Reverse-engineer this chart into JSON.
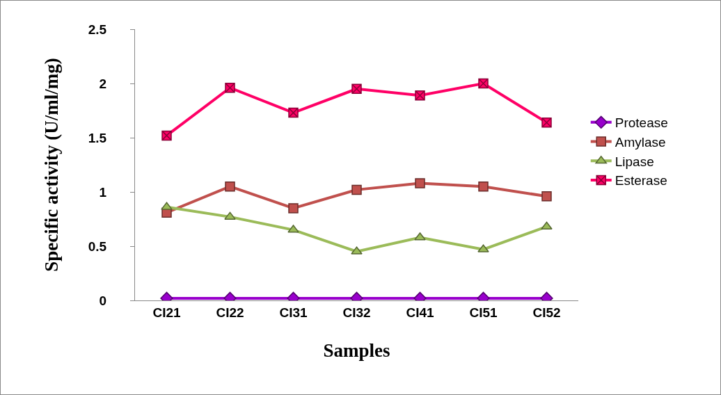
{
  "chart_data": {
    "type": "line",
    "xlabel": "Samples",
    "ylabel": "Specific activity (U/ml/mg)",
    "categories": [
      "CI21",
      "CI22",
      "CI31",
      "CI32",
      "CI41",
      "CI51",
      "CI52"
    ],
    "series": [
      {
        "name": "Protease",
        "color": "#9900cc",
        "marker": "diamond",
        "values": [
          0.02,
          0.02,
          0.02,
          0.02,
          0.02,
          0.02,
          0.02
        ]
      },
      {
        "name": "Amylase",
        "color": "#c0504d",
        "marker": "square",
        "values": [
          0.81,
          1.05,
          0.85,
          1.02,
          1.08,
          1.05,
          0.96
        ]
      },
      {
        "name": "Lipase",
        "color": "#9bbb59",
        "marker": "triangle",
        "values": [
          0.86,
          0.77,
          0.65,
          0.45,
          0.58,
          0.47,
          0.68
        ]
      },
      {
        "name": "Esterase",
        "color": "#ff0066",
        "marker": "cross",
        "values": [
          1.52,
          1.96,
          1.73,
          1.95,
          1.89,
          2.0,
          1.64
        ]
      }
    ],
    "ylim": [
      0,
      2.5
    ],
    "yticks": [
      0,
      0.5,
      1,
      1.5,
      2,
      2.5
    ],
    "grid": false,
    "legend": "right",
    "line_style": "solid"
  }
}
